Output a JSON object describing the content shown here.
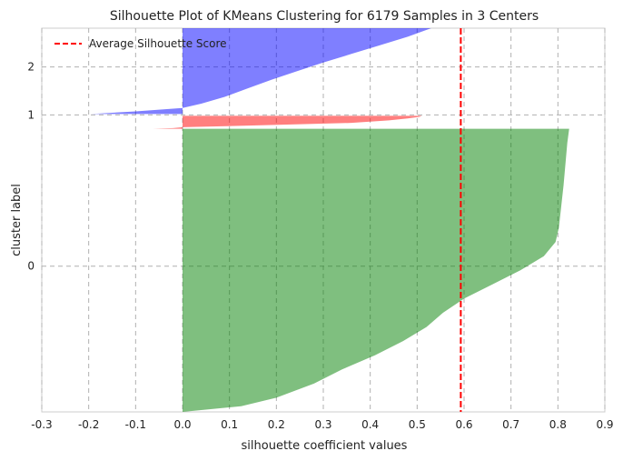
{
  "chart_data": {
    "type": "area",
    "title": "Silhouette Plot of KMeans Clustering for 6179 Samples in 3 Centers",
    "xlabel": "silhouette coefficient values",
    "ylabel": "cluster label",
    "xlim": [
      -0.3,
      0.9
    ],
    "x_ticks": [
      "-0.3",
      "-0.2",
      "-0.1",
      "0.0",
      "0.1",
      "0.2",
      "0.3",
      "0.4",
      "0.5",
      "0.6",
      "0.7",
      "0.8",
      "0.9"
    ],
    "y_ticks": [
      {
        "label": "0",
        "sample_position": 1580
      },
      {
        "label": "1",
        "sample_position": 3220
      },
      {
        "label": "2",
        "sample_position": 3740
      }
    ],
    "ylim": [
      0,
      4160
    ],
    "grid": true,
    "legend": {
      "position": "top-left",
      "entries": [
        "Average Silhouette Score"
      ]
    },
    "average_silhouette_score": 0.593,
    "series": [
      {
        "name": "0",
        "color": "#008000",
        "sample_range": [
          0,
          3070
        ],
        "profile": [
          [
            0.0,
            0.0
          ],
          [
            0.02,
            0.125
          ],
          [
            0.05,
            0.2
          ],
          [
            0.1,
            0.28
          ],
          [
            0.15,
            0.34
          ],
          [
            0.2,
            0.41
          ],
          [
            0.25,
            0.47
          ],
          [
            0.3,
            0.52
          ],
          [
            0.35,
            0.555
          ],
          [
            0.4,
            0.6
          ],
          [
            0.45,
            0.66
          ],
          [
            0.5,
            0.72
          ],
          [
            0.55,
            0.77
          ],
          [
            0.6,
            0.795
          ],
          [
            0.65,
            0.802
          ],
          [
            0.8,
            0.812
          ],
          [
            0.95,
            0.82
          ],
          [
            1.0,
            0.824
          ]
        ]
      },
      {
        "name": "1",
        "color": "#ff0000",
        "sample_range": [
          3070,
          3210
        ],
        "profile": [
          [
            0.0,
            -0.063
          ],
          [
            0.05,
            -0.02
          ],
          [
            0.12,
            0.0
          ],
          [
            0.25,
            0.15
          ],
          [
            0.45,
            0.36
          ],
          [
            0.65,
            0.44
          ],
          [
            0.8,
            0.48
          ],
          [
            0.92,
            0.505
          ],
          [
            1.0,
            0.51
          ]
        ]
      },
      {
        "name": "2",
        "color": "#0000ff",
        "sample_range": [
          3230,
          4160
        ],
        "profile": [
          [
            0.0,
            -0.195
          ],
          [
            0.03,
            -0.1
          ],
          [
            0.07,
            0.0
          ],
          [
            0.12,
            0.04
          ],
          [
            0.2,
            0.09
          ],
          [
            0.3,
            0.14
          ],
          [
            0.4,
            0.19
          ],
          [
            0.5,
            0.245
          ],
          [
            0.6,
            0.3
          ],
          [
            0.7,
            0.36
          ],
          [
            0.8,
            0.42
          ],
          [
            0.9,
            0.48
          ],
          [
            1.0,
            0.53
          ]
        ]
      }
    ]
  }
}
